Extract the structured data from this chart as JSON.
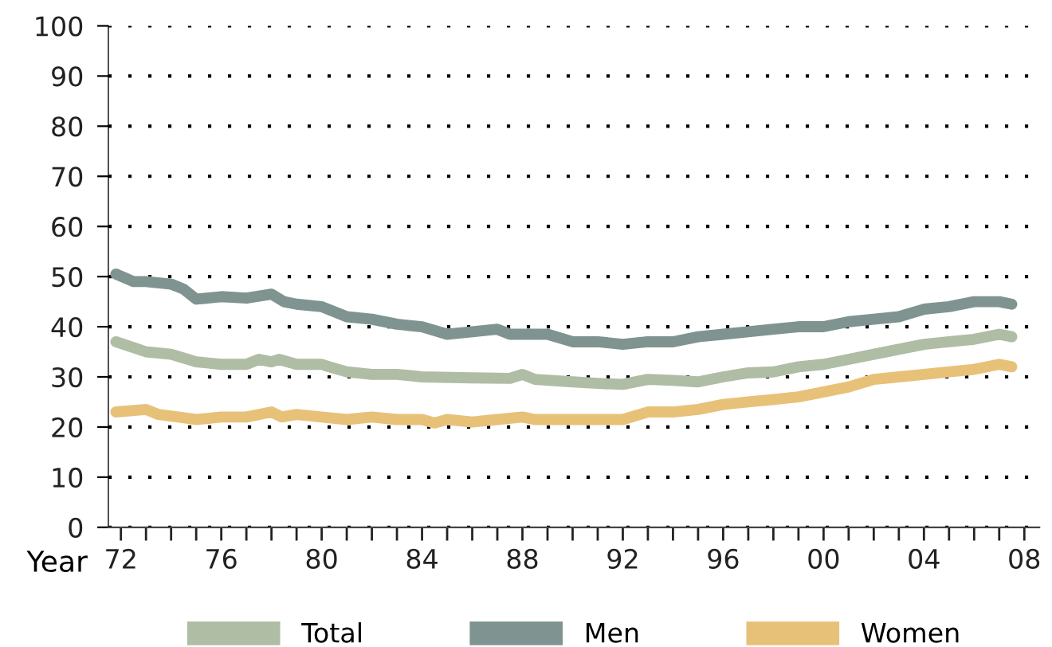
{
  "chart_data": {
    "type": "line",
    "xlabel": "Year",
    "ylim": [
      0,
      100
    ],
    "yticks": [
      0,
      10,
      20,
      30,
      40,
      50,
      60,
      70,
      80,
      90,
      100
    ],
    "xlim": [
      1971.5,
      2008.6
    ],
    "xticks": [
      {
        "value": 1972,
        "label": "72"
      },
      {
        "value": 1973,
        "label": null
      },
      {
        "value": 1974,
        "label": null
      },
      {
        "value": 1975,
        "label": null
      },
      {
        "value": 1976,
        "label": "76"
      },
      {
        "value": 1977,
        "label": null
      },
      {
        "value": 1978,
        "label": null
      },
      {
        "value": 1979,
        "label": null
      },
      {
        "value": 1980,
        "label": "80"
      },
      {
        "value": 1981,
        "label": null
      },
      {
        "value": 1982,
        "label": null
      },
      {
        "value": 1983,
        "label": null
      },
      {
        "value": 1984,
        "label": "84"
      },
      {
        "value": 1985,
        "label": null
      },
      {
        "value": 1986,
        "label": null
      },
      {
        "value": 1987,
        "label": null
      },
      {
        "value": 1988,
        "label": "88"
      },
      {
        "value": 1989,
        "label": null
      },
      {
        "value": 1990,
        "label": null
      },
      {
        "value": 1991,
        "label": null
      },
      {
        "value": 1992,
        "label": "92"
      },
      {
        "value": 1993,
        "label": null
      },
      {
        "value": 1994,
        "label": null
      },
      {
        "value": 1995,
        "label": null
      },
      {
        "value": 1996,
        "label": "96"
      },
      {
        "value": 1997,
        "label": null
      },
      {
        "value": 1998,
        "label": null
      },
      {
        "value": 1999,
        "label": null
      },
      {
        "value": 2000,
        "label": "00"
      },
      {
        "value": 2001,
        "label": null
      },
      {
        "value": 2002,
        "label": null
      },
      {
        "value": 2003,
        "label": null
      },
      {
        "value": 2004,
        "label": "04"
      },
      {
        "value": 2005,
        "label": null
      },
      {
        "value": 2006,
        "label": null
      },
      {
        "value": 2007,
        "label": null
      },
      {
        "value": 2008,
        "label": "08"
      }
    ],
    "grid": "y",
    "legend": "bottom",
    "marker": "none",
    "line_style": "solid",
    "series": [
      {
        "name": "Total",
        "color": "#afbda5",
        "x": [
          1971.8,
          1973,
          1974,
          1975,
          1976,
          1977,
          1977.5,
          1978,
          1978.3,
          1979,
          1980,
          1980.3,
          1981,
          1982,
          1983,
          1984,
          1986,
          1987.5,
          1988,
          1988.5,
          1990,
          1991,
          1992,
          1993,
          1994,
          1995,
          1996,
          1997,
          1998,
          1999,
          2000,
          2001,
          2002,
          2003,
          2004,
          2005,
          2006,
          2007,
          2007.5
        ],
        "values": [
          37,
          35,
          34.5,
          33,
          32.5,
          32.5,
          33.5,
          33,
          33.5,
          32.5,
          32.5,
          32,
          31,
          30.5,
          30.5,
          30,
          29.8,
          29.7,
          30.5,
          29.5,
          29,
          28.7,
          28.5,
          29.5,
          29.3,
          29,
          30,
          30.8,
          31,
          32,
          32.5,
          33.5,
          34.5,
          35.5,
          36.5,
          37,
          37.5,
          38.5,
          38
        ]
      },
      {
        "name": "Men",
        "color": "#7f9491",
        "x": [
          1971.8,
          1972.5,
          1973,
          1974,
          1974.5,
          1975,
          1976,
          1977,
          1978,
          1978.5,
          1979,
          1980,
          1981,
          1982,
          1983,
          1984,
          1985,
          1986,
          1987,
          1987.5,
          1989,
          1990,
          1991,
          1992,
          1993,
          1994,
          1995,
          1996,
          1997,
          1998,
          1999,
          2000,
          2001,
          2002,
          2003,
          2004,
          2005,
          2006,
          2007,
          2007.5
        ],
        "values": [
          50.5,
          49,
          49,
          48.5,
          47.5,
          45.5,
          46,
          45.7,
          46.5,
          45,
          44.5,
          44,
          42,
          41.5,
          40.5,
          40,
          38.5,
          39,
          39.5,
          38.5,
          38.5,
          37,
          37,
          36.5,
          37,
          37,
          38,
          38.5,
          39,
          39.5,
          40,
          40,
          41,
          41.5,
          42,
          43.5,
          44,
          45,
          45,
          44.5
        ]
      },
      {
        "name": "Women",
        "color": "#e8c179",
        "x": [
          1971.8,
          1973,
          1973.5,
          1975,
          1976,
          1977,
          1978,
          1978.4,
          1979,
          1980,
          1981,
          1982,
          1983,
          1984,
          1984.5,
          1985,
          1986,
          1987,
          1988,
          1988.5,
          1989,
          1992,
          1993,
          1994,
          1995,
          1996,
          1997,
          1998,
          1999,
          2000,
          2001,
          2002,
          2003,
          2004,
          2005,
          2006,
          2007,
          2007.5
        ],
        "values": [
          23,
          23.5,
          22.5,
          21.5,
          22,
          22,
          23,
          22,
          22.5,
          22,
          21.5,
          22,
          21.5,
          21.5,
          20.8,
          21.5,
          21,
          21.5,
          22,
          21.5,
          21.5,
          21.5,
          23,
          23,
          23.5,
          24.5,
          25,
          25.5,
          26,
          27,
          28,
          29.5,
          30,
          30.5,
          31,
          31.5,
          32.5,
          32
        ]
      }
    ]
  }
}
